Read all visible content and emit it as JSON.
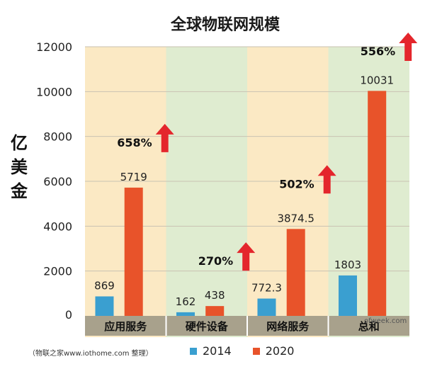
{
  "chart_data": {
    "type": "bar",
    "title": "全球物联网规模",
    "ylabel": "亿美金",
    "ylim": [
      0,
      12000
    ],
    "yticks": [
      0,
      2000,
      4000,
      6000,
      8000,
      10000,
      12000
    ],
    "categories": [
      "应用服务",
      "硬件设备",
      "网络服务",
      "总和"
    ],
    "series": [
      {
        "name": "2014",
        "color": "#3a9fd0",
        "values": [
          869,
          162,
          772.3,
          1803
        ],
        "labels": [
          "869",
          "162",
          "772.3",
          "1803"
        ]
      },
      {
        "name": "2020",
        "color": "#e8532a",
        "values": [
          5719,
          438,
          3874.5,
          10031
        ],
        "labels": [
          "5719",
          "438",
          "3874.5",
          "10031"
        ]
      }
    ],
    "growth": [
      "658%",
      "270%",
      "502%",
      "556%"
    ],
    "band_colors": [
      "#fbe9c4",
      "#dfecd0"
    ],
    "arrow_color": "#e4262c"
  },
  "footer": "（物联之家www.iothome.com 整理）",
  "watermark": "ofweek.com"
}
